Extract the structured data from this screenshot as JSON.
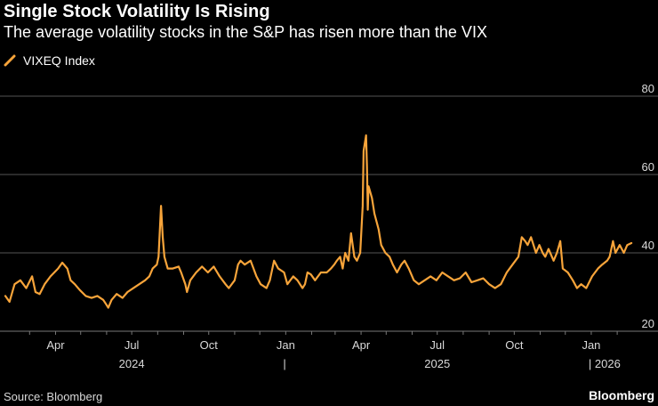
{
  "header": {
    "title": "Single Stock Volatility Is Rising",
    "subtitle": "The average volatility stocks in the S&P has risen more than the VIX"
  },
  "footer": {
    "source": "Source: Bloomberg",
    "brand": "Bloomberg"
  },
  "colors": {
    "background": "#000000",
    "series": "#f7a43a",
    "grid": "#555555",
    "text": "#ffffff",
    "axis_text": "#d9d9d9"
  },
  "chart_data": {
    "type": "line",
    "title": "Single Stock Volatility Is Rising",
    "subtitle": "The average volatility stocks in the S&P has risen more than the VIX",
    "xlabel": "",
    "ylabel": "",
    "ylim": [
      20,
      80
    ],
    "y_ticks": [
      20,
      40,
      60,
      80
    ],
    "grid": true,
    "legend_position": "top-left",
    "x_range": [
      "2024-02-01",
      "2026-02-20"
    ],
    "x_ticks": [
      {
        "date": "2024-04-01",
        "label": "Apr"
      },
      {
        "date": "2024-07-01",
        "label": "Jul"
      },
      {
        "date": "2024-10-01",
        "label": "Oct"
      },
      {
        "date": "2025-01-01",
        "label": "Jan"
      },
      {
        "date": "2025-04-01",
        "label": "Apr"
      },
      {
        "date": "2025-07-01",
        "label": "Jul"
      },
      {
        "date": "2025-10-01",
        "label": "Oct"
      },
      {
        "date": "2026-01-01",
        "label": "Jan"
      }
    ],
    "year_labels": [
      {
        "date": "2024-07-01",
        "label": "2024"
      },
      {
        "date": "2025-01-01",
        "label": "|"
      },
      {
        "date": "2025-07-01",
        "label": "2025"
      },
      {
        "date": "2026-01-01",
        "label": "| 2026"
      }
    ],
    "series": [
      {
        "name": "VIXEQ Index",
        "points": [
          [
            "2024-02-01",
            29
          ],
          [
            "2024-02-06",
            27.5
          ],
          [
            "2024-02-12",
            32
          ],
          [
            "2024-02-19",
            33
          ],
          [
            "2024-02-26",
            31
          ],
          [
            "2024-03-04",
            34
          ],
          [
            "2024-03-08",
            30
          ],
          [
            "2024-03-13",
            29.5
          ],
          [
            "2024-03-19",
            32
          ],
          [
            "2024-03-26",
            34
          ],
          [
            "2024-04-04",
            36
          ],
          [
            "2024-04-09",
            37.5
          ],
          [
            "2024-04-15",
            36
          ],
          [
            "2024-04-19",
            33
          ],
          [
            "2024-04-24",
            32
          ],
          [
            "2024-04-30",
            30.5
          ],
          [
            "2024-05-07",
            29
          ],
          [
            "2024-05-14",
            28.5
          ],
          [
            "2024-05-21",
            29
          ],
          [
            "2024-05-28",
            28
          ],
          [
            "2024-05-31",
            27
          ],
          [
            "2024-06-03",
            26
          ],
          [
            "2024-06-07",
            28
          ],
          [
            "2024-06-13",
            29.5
          ],
          [
            "2024-06-20",
            28.5
          ],
          [
            "2024-06-26",
            30
          ],
          [
            "2024-07-03",
            31
          ],
          [
            "2024-07-10",
            32
          ],
          [
            "2024-07-17",
            33
          ],
          [
            "2024-07-22",
            34
          ],
          [
            "2024-07-26",
            36
          ],
          [
            "2024-07-31",
            37
          ],
          [
            "2024-08-02",
            39
          ],
          [
            "2024-08-05",
            52
          ],
          [
            "2024-08-07",
            44
          ],
          [
            "2024-08-09",
            39
          ],
          [
            "2024-08-13",
            36
          ],
          [
            "2024-08-19",
            36
          ],
          [
            "2024-08-26",
            36.5
          ],
          [
            "2024-08-29",
            35
          ],
          [
            "2024-09-03",
            32
          ],
          [
            "2024-09-05",
            30
          ],
          [
            "2024-09-09",
            33
          ],
          [
            "2024-09-16",
            35
          ],
          [
            "2024-09-23",
            36.5
          ],
          [
            "2024-09-30",
            35
          ],
          [
            "2024-10-07",
            36.5
          ],
          [
            "2024-10-14",
            34
          ],
          [
            "2024-10-21",
            32
          ],
          [
            "2024-10-25",
            31
          ],
          [
            "2024-11-01",
            33
          ],
          [
            "2024-11-05",
            37
          ],
          [
            "2024-11-08",
            38
          ],
          [
            "2024-11-13",
            37
          ],
          [
            "2024-11-20",
            38
          ],
          [
            "2024-11-27",
            34
          ],
          [
            "2024-12-02",
            32
          ],
          [
            "2024-12-09",
            31
          ],
          [
            "2024-12-13",
            33
          ],
          [
            "2024-12-18",
            38
          ],
          [
            "2024-12-23",
            36
          ],
          [
            "2024-12-30",
            35
          ],
          [
            "2025-01-03",
            32
          ],
          [
            "2025-01-10",
            34
          ],
          [
            "2025-01-15",
            33
          ],
          [
            "2025-01-21",
            31
          ],
          [
            "2025-01-24",
            32
          ],
          [
            "2025-01-27",
            35
          ],
          [
            "2025-01-31",
            34.5
          ],
          [
            "2025-02-05",
            33
          ],
          [
            "2025-02-12",
            35
          ],
          [
            "2025-02-19",
            35
          ],
          [
            "2025-02-24",
            36
          ],
          [
            "2025-02-28",
            37
          ],
          [
            "2025-03-03",
            38
          ],
          [
            "2025-03-07",
            39
          ],
          [
            "2025-03-10",
            36
          ],
          [
            "2025-03-13",
            40
          ],
          [
            "2025-03-17",
            38
          ],
          [
            "2025-03-20",
            45
          ],
          [
            "2025-03-24",
            39
          ],
          [
            "2025-03-27",
            38
          ],
          [
            "2025-03-31",
            40
          ],
          [
            "2025-04-03",
            52
          ],
          [
            "2025-04-04",
            66
          ],
          [
            "2025-04-07",
            70
          ],
          [
            "2025-04-08",
            62
          ],
          [
            "2025-04-09",
            51
          ],
          [
            "2025-04-10",
            57
          ],
          [
            "2025-04-14",
            54
          ],
          [
            "2025-04-17",
            50
          ],
          [
            "2025-04-22",
            46
          ],
          [
            "2025-04-25",
            42
          ],
          [
            "2025-04-30",
            40
          ],
          [
            "2025-05-05",
            39
          ],
          [
            "2025-05-09",
            37
          ],
          [
            "2025-05-14",
            35
          ],
          [
            "2025-05-19",
            37
          ],
          [
            "2025-05-23",
            38
          ],
          [
            "2025-05-28",
            36
          ],
          [
            "2025-06-03",
            33
          ],
          [
            "2025-06-09",
            32
          ],
          [
            "2025-06-16",
            33
          ],
          [
            "2025-06-23",
            34
          ],
          [
            "2025-06-30",
            33
          ],
          [
            "2025-07-07",
            35
          ],
          [
            "2025-07-14",
            34
          ],
          [
            "2025-07-21",
            33
          ],
          [
            "2025-07-28",
            33.5
          ],
          [
            "2025-08-04",
            35
          ],
          [
            "2025-08-11",
            32.5
          ],
          [
            "2025-08-18",
            33
          ],
          [
            "2025-08-25",
            33.5
          ],
          [
            "2025-09-01",
            32
          ],
          [
            "2025-09-08",
            31
          ],
          [
            "2025-09-15",
            32
          ],
          [
            "2025-09-22",
            35
          ],
          [
            "2025-09-29",
            37
          ],
          [
            "2025-10-06",
            39
          ],
          [
            "2025-10-10",
            44
          ],
          [
            "2025-10-14",
            43
          ],
          [
            "2025-10-17",
            42
          ],
          [
            "2025-10-21",
            44
          ],
          [
            "2025-10-27",
            40
          ],
          [
            "2025-10-31",
            42
          ],
          [
            "2025-11-04",
            40
          ],
          [
            "2025-11-07",
            39
          ],
          [
            "2025-11-11",
            41
          ],
          [
            "2025-11-17",
            38
          ],
          [
            "2025-11-21",
            40
          ],
          [
            "2025-11-25",
            43
          ],
          [
            "2025-11-28",
            36
          ],
          [
            "2025-12-04",
            35
          ],
          [
            "2025-12-10",
            33
          ],
          [
            "2025-12-15",
            31
          ],
          [
            "2025-12-20",
            32
          ],
          [
            "2025-12-26",
            31
          ],
          [
            "2026-01-02",
            34
          ],
          [
            "2026-01-09",
            36
          ],
          [
            "2026-01-14",
            37
          ],
          [
            "2026-01-20",
            38
          ],
          [
            "2026-01-23",
            39
          ],
          [
            "2026-01-27",
            43
          ],
          [
            "2026-01-30",
            40
          ],
          [
            "2026-02-04",
            42
          ],
          [
            "2026-02-09",
            40
          ],
          [
            "2026-02-13",
            42
          ],
          [
            "2026-02-18",
            42.5
          ]
        ]
      }
    ]
  }
}
